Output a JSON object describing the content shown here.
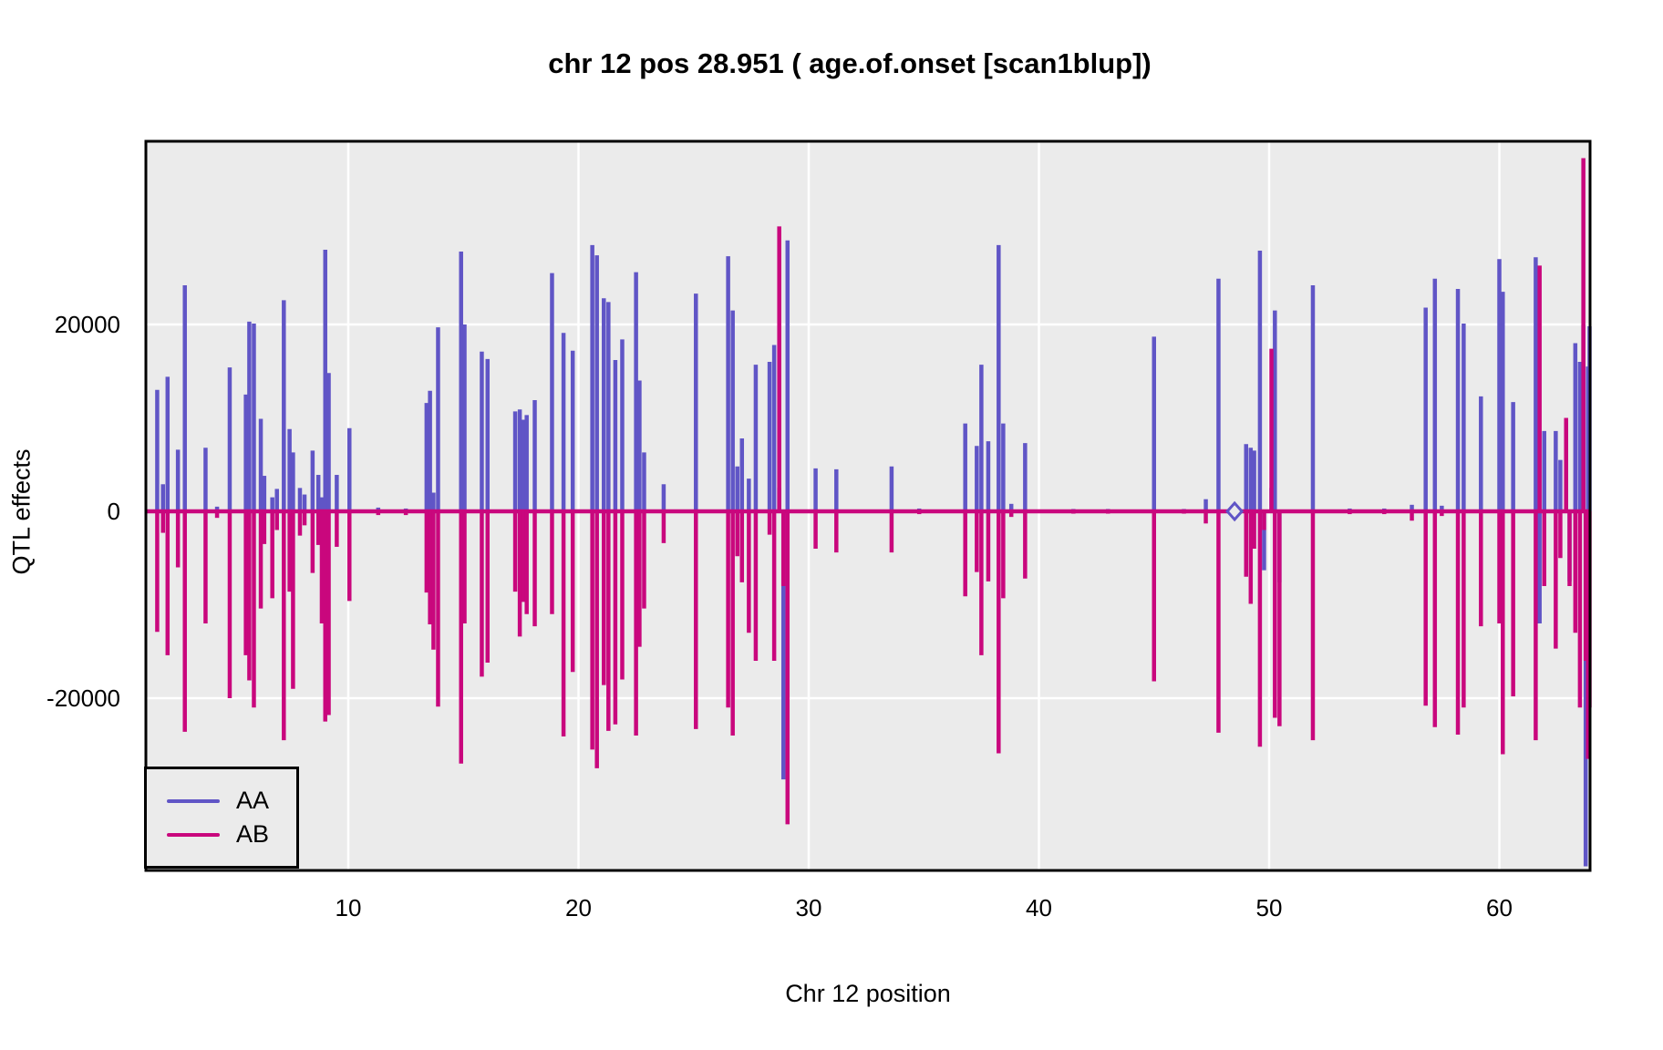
{
  "page": {
    "background": "#ffffff",
    "title": "chr 12 pos 28.951 ( age.of.onset  [scan1blup])"
  },
  "chart_data": {
    "type": "line",
    "subtype": "vertical-spike-profile (QTL coefficient scan)",
    "title": "chr 12 pos 28.951 ( age.of.onset  [scan1blup])",
    "xlabel": "Chr 12 position",
    "ylabel": "QTL effects",
    "xlim": [
      1.2,
      64.0
    ],
    "ylim": [
      -38400,
      39600
    ],
    "x_ticks": [
      10,
      20,
      30,
      40,
      50,
      60
    ],
    "y_ticks": [
      -20000,
      0,
      20000
    ],
    "grid": "white major gridlines on gray panel",
    "panel_bg": "#EBEBEB",
    "grid_color": "#FFFFFF",
    "border_color": "#000000",
    "legend_position": "bottom-left",
    "series": [
      {
        "name": "AA",
        "color": "#6055C6"
      },
      {
        "name": "AB",
        "color": "#C9077D"
      }
    ],
    "baseline": {
      "value": 0,
      "color": "#C9077D"
    },
    "peak_marker": {
      "x": 48.5,
      "y": 0,
      "shape": "open-diamond",
      "color": "#6055C6"
    },
    "spikes_format": [
      "x_position_cM",
      "AA_effect",
      "AB_effect"
    ],
    "spikes": [
      [
        1.7,
        13000,
        -12900
      ],
      [
        1.95,
        2900,
        -2300
      ],
      [
        2.15,
        14400,
        -15400
      ],
      [
        2.6,
        6600,
        -6000
      ],
      [
        2.9,
        24200,
        -23600
      ],
      [
        3.8,
        6800,
        -12000
      ],
      [
        4.3,
        500,
        -700
      ],
      [
        4.85,
        15400,
        -20000
      ],
      [
        5.55,
        12500,
        -15400
      ],
      [
        5.7,
        20300,
        -18100
      ],
      [
        5.9,
        20100,
        -21000
      ],
      [
        6.2,
        9900,
        -10400
      ],
      [
        6.35,
        3800,
        -3500
      ],
      [
        6.7,
        1500,
        -9300
      ],
      [
        6.9,
        2400,
        -2000
      ],
      [
        7.2,
        22600,
        -24500
      ],
      [
        7.45,
        8800,
        -8600
      ],
      [
        7.6,
        6300,
        -19000
      ],
      [
        7.9,
        2500,
        -2600
      ],
      [
        8.1,
        1800,
        -1500
      ],
      [
        8.45,
        6500,
        -6600
      ],
      [
        8.7,
        3900,
        -3600
      ],
      [
        8.85,
        1500,
        -12000
      ],
      [
        9.0,
        28000,
        -22500
      ],
      [
        9.15,
        14800,
        -21800
      ],
      [
        9.5,
        3900,
        -3800
      ],
      [
        10.05,
        8900,
        -9600
      ],
      [
        11.3,
        400,
        -400
      ],
      [
        12.5,
        300,
        -400
      ],
      [
        13.4,
        11600,
        -8700
      ],
      [
        13.55,
        12900,
        -12100
      ],
      [
        13.7,
        2000,
        -14800
      ],
      [
        13.9,
        19700,
        -20900
      ],
      [
        14.9,
        27800,
        -27000
      ],
      [
        15.05,
        20000,
        -12000
      ],
      [
        15.8,
        17100,
        -17700
      ],
      [
        16.05,
        16300,
        -16200
      ],
      [
        17.25,
        10700,
        -8600
      ],
      [
        17.45,
        10900,
        -13400
      ],
      [
        17.6,
        9800,
        -9700
      ],
      [
        17.75,
        10300,
        -11000
      ],
      [
        18.1,
        11900,
        -12300
      ],
      [
        18.85,
        25500,
        -11000
      ],
      [
        19.35,
        19100,
        -24100
      ],
      [
        19.75,
        17200,
        -17200
      ],
      [
        20.6,
        28500,
        -25500
      ],
      [
        20.8,
        27400,
        -27500
      ],
      [
        21.1,
        22800,
        -18600
      ],
      [
        21.3,
        22400,
        -23500
      ],
      [
        21.6,
        16200,
        -22800
      ],
      [
        21.9,
        18400,
        -18000
      ],
      [
        22.5,
        25600,
        -24000
      ],
      [
        22.65,
        14000,
        -14500
      ],
      [
        22.85,
        6300,
        -10400
      ],
      [
        23.7,
        2900,
        -3400
      ],
      [
        25.1,
        23300,
        -23300
      ],
      [
        26.5,
        27300,
        -21000
      ],
      [
        26.7,
        21500,
        -24000
      ],
      [
        26.9,
        4800,
        -4800
      ],
      [
        27.1,
        7800,
        -7600
      ],
      [
        27.4,
        3500,
        -13000
      ],
      [
        27.7,
        15700,
        -16000
      ],
      [
        28.3,
        16000,
        -2500
      ],
      [
        28.5,
        17800,
        -16000
      ],
      [
        28.72,
        2500,
        30500
      ],
      [
        28.9,
        -28700,
        -8000
      ],
      [
        29.08,
        29000,
        -33500
      ],
      [
        30.3,
        4600,
        -4000
      ],
      [
        31.2,
        4500,
        -4400
      ],
      [
        33.6,
        4800,
        -4400
      ],
      [
        34.8,
        300,
        -300
      ],
      [
        36.8,
        9400,
        -9100
      ],
      [
        37.3,
        7000,
        -6500
      ],
      [
        37.5,
        15700,
        -15400
      ],
      [
        37.8,
        7500,
        -7500
      ],
      [
        38.25,
        28500,
        -25900
      ],
      [
        38.45,
        9400,
        -9300
      ],
      [
        38.8,
        800,
        -600
      ],
      [
        39.4,
        7300,
        -7200
      ],
      [
        41.5,
        250,
        -250
      ],
      [
        43.0,
        250,
        -250
      ],
      [
        45.0,
        18700,
        -18200
      ],
      [
        46.3,
        250,
        -250
      ],
      [
        47.25,
        1300,
        -1300
      ],
      [
        47.8,
        24900,
        -23700
      ],
      [
        48.5,
        0,
        -800
      ],
      [
        49.0,
        7200,
        -7000
      ],
      [
        49.2,
        6800,
        -9900
      ],
      [
        49.35,
        6500,
        -4000
      ],
      [
        49.6,
        27900,
        -25200
      ],
      [
        49.78,
        -6300,
        -2000
      ],
      [
        50.1,
        2500,
        17400
      ],
      [
        50.25,
        21500,
        -22100
      ],
      [
        50.45,
        -7600,
        -23000
      ],
      [
        51.9,
        24200,
        -24500
      ],
      [
        53.5,
        300,
        -300
      ],
      [
        55.0,
        300,
        -300
      ],
      [
        56.2,
        700,
        -1000
      ],
      [
        56.8,
        21800,
        -20800
      ],
      [
        57.2,
        24900,
        -23100
      ],
      [
        57.5,
        600,
        -500
      ],
      [
        58.2,
        23800,
        -23900
      ],
      [
        58.45,
        20100,
        -21000
      ],
      [
        59.2,
        12300,
        -12300
      ],
      [
        60.0,
        27000,
        -12000
      ],
      [
        60.15,
        23500,
        -26000
      ],
      [
        60.6,
        11700,
        -19800
      ],
      [
        61.58,
        27200,
        -24500
      ],
      [
        61.75,
        -12000,
        26300
      ],
      [
        61.95,
        8600,
        -8000
      ],
      [
        62.45,
        8600,
        -14700
      ],
      [
        62.65,
        5500,
        -5000
      ],
      [
        62.9,
        9500,
        10000
      ],
      [
        63.05,
        -7500,
        -8000
      ],
      [
        63.3,
        18000,
        -13000
      ],
      [
        63.5,
        16000,
        -21000
      ],
      [
        63.65,
        20000,
        37800
      ],
      [
        63.75,
        -38000,
        -16000
      ],
      [
        63.85,
        15500,
        -26500
      ],
      [
        63.92,
        19800,
        -21000
      ]
    ]
  },
  "legend": {
    "items": [
      {
        "label": "AA",
        "color": "#6055C6"
      },
      {
        "label": "AB",
        "color": "#C9077D"
      }
    ]
  }
}
